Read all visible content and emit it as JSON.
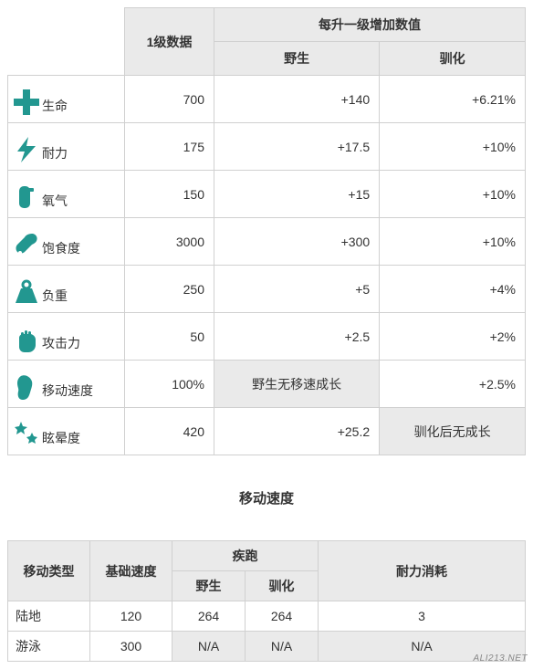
{
  "iconColor": "#229790",
  "statsTable": {
    "header": {
      "level1": "1级数据",
      "perLevel": "每升一级增加数值",
      "wild": "野生",
      "tamed": "驯化"
    },
    "rows": [
      {
        "icon": "plus",
        "label": "生命",
        "lvl1": "700",
        "wild": "+140",
        "tamed": "+6.21%",
        "wildShaded": false,
        "tamedShaded": false
      },
      {
        "icon": "bolt",
        "label": "耐力",
        "lvl1": "175",
        "wild": "+17.5",
        "tamed": "+10%",
        "wildShaded": false,
        "tamedShaded": false
      },
      {
        "icon": "tank",
        "label": "氧气",
        "lvl1": "150",
        "wild": "+15",
        "tamed": "+10%",
        "wildShaded": false,
        "tamedShaded": false
      },
      {
        "icon": "meat",
        "label": "饱食度",
        "lvl1": "3000",
        "wild": "+300",
        "tamed": "+10%",
        "wildShaded": false,
        "tamedShaded": false
      },
      {
        "icon": "weight",
        "label": "负重",
        "lvl1": "250",
        "wild": "+5",
        "tamed": "+4%",
        "wildShaded": false,
        "tamedShaded": false
      },
      {
        "icon": "fist",
        "label": "攻击力",
        "lvl1": "50",
        "wild": "+2.5",
        "tamed": "+2%",
        "wildShaded": false,
        "tamedShaded": false
      },
      {
        "icon": "foot",
        "label": "移动速度",
        "lvl1": "100%",
        "wild": "野生无移速成长",
        "tamed": "+2.5%",
        "wildShaded": true,
        "tamedShaded": false
      },
      {
        "icon": "stars",
        "label": "眩晕度",
        "lvl1": "420",
        "wild": "+25.2",
        "tamed": "驯化后无成长",
        "wildShaded": false,
        "tamedShaded": true
      }
    ]
  },
  "speedTable": {
    "title": "移动速度",
    "header": {
      "type": "移动类型",
      "base": "基础速度",
      "sprint": "疾跑",
      "wild": "野生",
      "tamed": "驯化",
      "stamina": "耐力消耗"
    },
    "rows": [
      {
        "type": "陆地",
        "base": "120",
        "wild": "264",
        "tamed": "264",
        "stamina": "3",
        "na": false
      },
      {
        "type": "游泳",
        "base": "300",
        "wild": "N/A",
        "tamed": "N/A",
        "stamina": "N/A",
        "na": true
      }
    ]
  },
  "watermark": "ALI213.NET"
}
